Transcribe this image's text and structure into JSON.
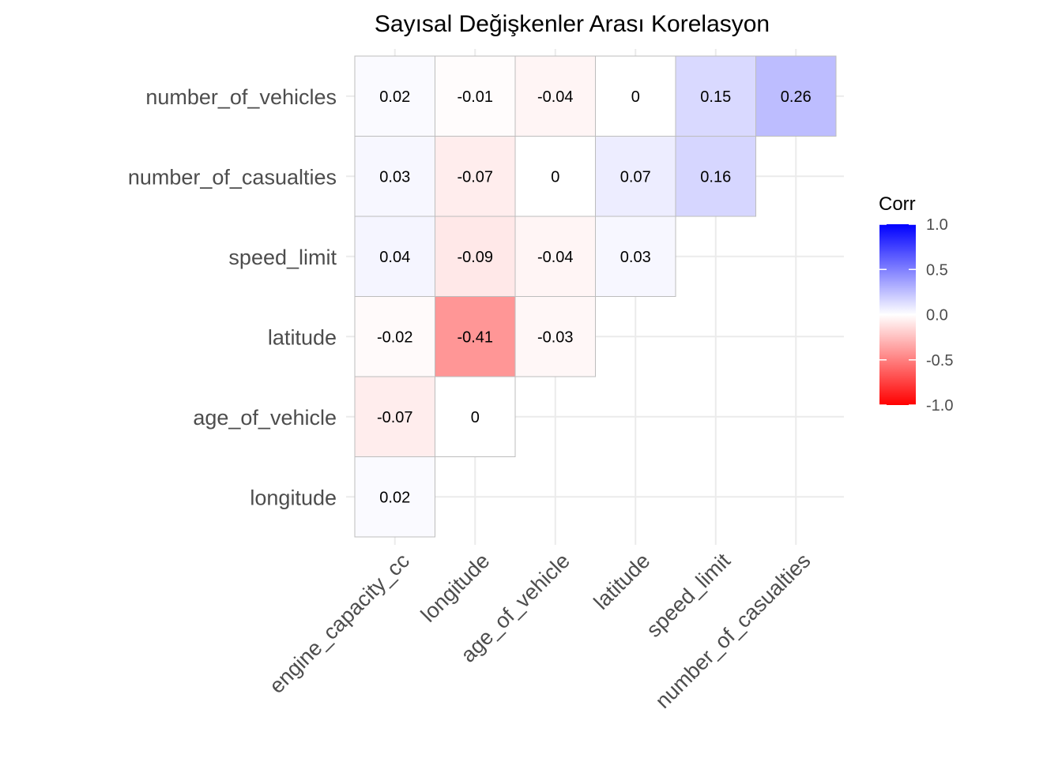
{
  "chart_data": {
    "type": "heatmap",
    "title": "Sayısal Değişkenler Arası Korelasyon",
    "x_categories": [
      "engine_capacity_cc",
      "longitude",
      "age_of_vehicle",
      "latitude",
      "speed_limit",
      "number_of_casualties"
    ],
    "y_categories": [
      "longitude",
      "age_of_vehicle",
      "latitude",
      "speed_limit",
      "number_of_casualties",
      "number_of_vehicles"
    ],
    "cells": [
      {
        "x": "engine_capacity_cc",
        "y": "longitude",
        "value": 0.02,
        "label": "0.02"
      },
      {
        "x": "engine_capacity_cc",
        "y": "age_of_vehicle",
        "value": -0.07,
        "label": "-0.07"
      },
      {
        "x": "longitude",
        "y": "age_of_vehicle",
        "value": 0,
        "label": "0"
      },
      {
        "x": "engine_capacity_cc",
        "y": "latitude",
        "value": -0.02,
        "label": "-0.02"
      },
      {
        "x": "longitude",
        "y": "latitude",
        "value": -0.41,
        "label": "-0.41"
      },
      {
        "x": "age_of_vehicle",
        "y": "latitude",
        "value": -0.03,
        "label": "-0.03"
      },
      {
        "x": "engine_capacity_cc",
        "y": "speed_limit",
        "value": 0.04,
        "label": "0.04"
      },
      {
        "x": "longitude",
        "y": "speed_limit",
        "value": -0.09,
        "label": "-0.09"
      },
      {
        "x": "age_of_vehicle",
        "y": "speed_limit",
        "value": -0.04,
        "label": "-0.04"
      },
      {
        "x": "latitude",
        "y": "speed_limit",
        "value": 0.03,
        "label": "0.03"
      },
      {
        "x": "engine_capacity_cc",
        "y": "number_of_casualties",
        "value": 0.03,
        "label": "0.03"
      },
      {
        "x": "longitude",
        "y": "number_of_casualties",
        "value": -0.07,
        "label": "-0.07"
      },
      {
        "x": "age_of_vehicle",
        "y": "number_of_casualties",
        "value": 0,
        "label": "0"
      },
      {
        "x": "latitude",
        "y": "number_of_casualties",
        "value": 0.07,
        "label": "0.07"
      },
      {
        "x": "speed_limit",
        "y": "number_of_casualties",
        "value": 0.16,
        "label": "0.16"
      },
      {
        "x": "engine_capacity_cc",
        "y": "number_of_vehicles",
        "value": 0.02,
        "label": "0.02"
      },
      {
        "x": "longitude",
        "y": "number_of_vehicles",
        "value": -0.01,
        "label": "-0.01"
      },
      {
        "x": "age_of_vehicle",
        "y": "number_of_vehicles",
        "value": -0.04,
        "label": "-0.04"
      },
      {
        "x": "latitude",
        "y": "number_of_vehicles",
        "value": 0,
        "label": "0"
      },
      {
        "x": "speed_limit",
        "y": "number_of_vehicles",
        "value": 0.15,
        "label": "0.15"
      },
      {
        "x": "number_of_casualties",
        "y": "number_of_vehicles",
        "value": 0.26,
        "label": "0.26"
      }
    ],
    "color_scale": {
      "low": "#ff0000",
      "mid": "#ffffff",
      "high": "#0000ff",
      "limits": [
        -1,
        1
      ]
    },
    "legend": {
      "title": "Corr",
      "position": "right",
      "ticks": [
        {
          "value": 1.0,
          "label": "1.0"
        },
        {
          "value": 0.5,
          "label": "0.5"
        },
        {
          "value": 0.0,
          "label": "0.0"
        },
        {
          "value": -0.5,
          "label": "-0.5"
        },
        {
          "value": -1.0,
          "label": "-1.0"
        }
      ]
    },
    "grid": true,
    "xlabel": "",
    "ylabel": ""
  }
}
